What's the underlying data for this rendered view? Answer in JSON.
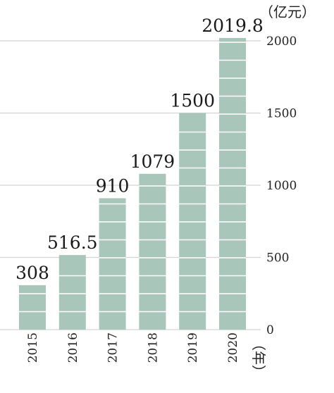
{
  "chart_data": {
    "type": "bar",
    "categories": [
      "2015",
      "2016",
      "2017",
      "2018",
      "2019",
      "2020"
    ],
    "values": [
      308,
      516.5,
      910,
      1079,
      1500,
      2019.8
    ],
    "data_labels": [
      "308",
      "516.5",
      "910",
      "1079",
      "1500",
      "2019.8"
    ],
    "yunit": "（亿元）",
    "xunit": "（年）",
    "yticks": [
      0,
      500,
      1000,
      1500,
      2000
    ],
    "ylim": [
      0,
      2000
    ],
    "axis_position": "right",
    "grid": true,
    "colors": {
      "bar": "#a9c6ba",
      "stripe": "#ffffff",
      "grid": "#d4d4d4",
      "text": "#222222"
    }
  }
}
